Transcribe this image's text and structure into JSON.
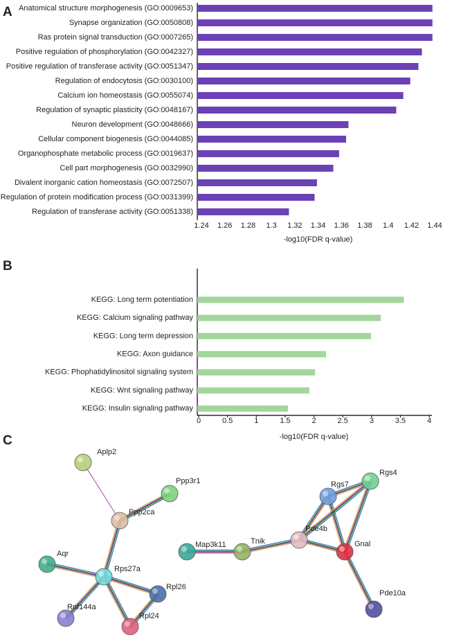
{
  "panels": [
    "A",
    "B",
    "C"
  ],
  "chart_data": [
    {
      "type": "bar",
      "orientation": "horizontal",
      "x_label": "-log10(FDR q-value)",
      "color": "#6b41b5",
      "categories": [
        "Anatomical structure morphogenesis (GO:0009653)",
        "Synapse organization (GO:0050808)",
        "Ras protein signal transduction (GO:0007265)",
        "Positive regulation of phosphorylation (GO:0042327)",
        "Positive regulation of transferase activity (GO:0051347)",
        "Regulation of endocytosis (GO:0030100)",
        "Calcium ion homeostasis (GO:0055074)",
        "Regulation of synaptic plasticity (GO:0048167)",
        "Neuron development (GO:0048666)",
        "Cellular component biogenesis (GO:0044085)",
        "Organophosphate metabolic process (GO:0019637)",
        "Cell part morphogenesis (GO:0032990)",
        "Divalent inorganic cation homeostasis (GO:0072507)",
        "Regulation of protein modification process (GO:0031399)",
        "Regulation of transferase activity (GO:0051338)"
      ],
      "values": [
        1.438,
        1.438,
        1.438,
        1.429,
        1.426,
        1.419,
        1.413,
        1.407,
        1.366,
        1.364,
        1.358,
        1.353,
        1.339,
        1.337,
        1.315
      ],
      "xlim": [
        1.24,
        1.44
      ],
      "xticks": [
        1.24,
        1.26,
        1.28,
        1.3,
        1.32,
        1.34,
        1.36,
        1.38,
        1.4,
        1.42,
        1.44
      ]
    },
    {
      "type": "bar",
      "orientation": "horizontal",
      "x_label": "-log10(FDR q-value)",
      "color": "#a3d69c",
      "categories": [
        "KEGG: Long term potentiation",
        "KEGG: Calcium signaling pathway",
        "KEGG: Long term depression",
        "KEGG: Axon guidance",
        "KEGG: Phophatidylinositol signaling system",
        "KEGG: Wnt signaling pathway",
        "KEGG: Insulin signaling pathway"
      ],
      "values": [
        3.56,
        3.16,
        2.99,
        2.21,
        2.02,
        1.92,
        1.55
      ],
      "xlim": [
        0,
        4
      ],
      "xticks": [
        0,
        0.5,
        1,
        1.5,
        2,
        2.5,
        3,
        3.5,
        4
      ]
    }
  ],
  "network": {
    "nodes": [
      {
        "label": "Aplp2"
      },
      {
        "label": "Ppp3r1"
      },
      {
        "label": "Ppp2ca"
      },
      {
        "label": "Aqr"
      },
      {
        "label": "Rps27a"
      },
      {
        "label": "Rpl26"
      },
      {
        "label": "Rnf144a"
      },
      {
        "label": "Rpl24"
      },
      {
        "label": "Map3k11"
      },
      {
        "label": "Tnik"
      },
      {
        "label": "Pde4b"
      },
      {
        "label": "Rgs7"
      },
      {
        "label": "Rgs4"
      },
      {
        "label": "Gnal"
      },
      {
        "label": "Pde10a"
      }
    ]
  }
}
